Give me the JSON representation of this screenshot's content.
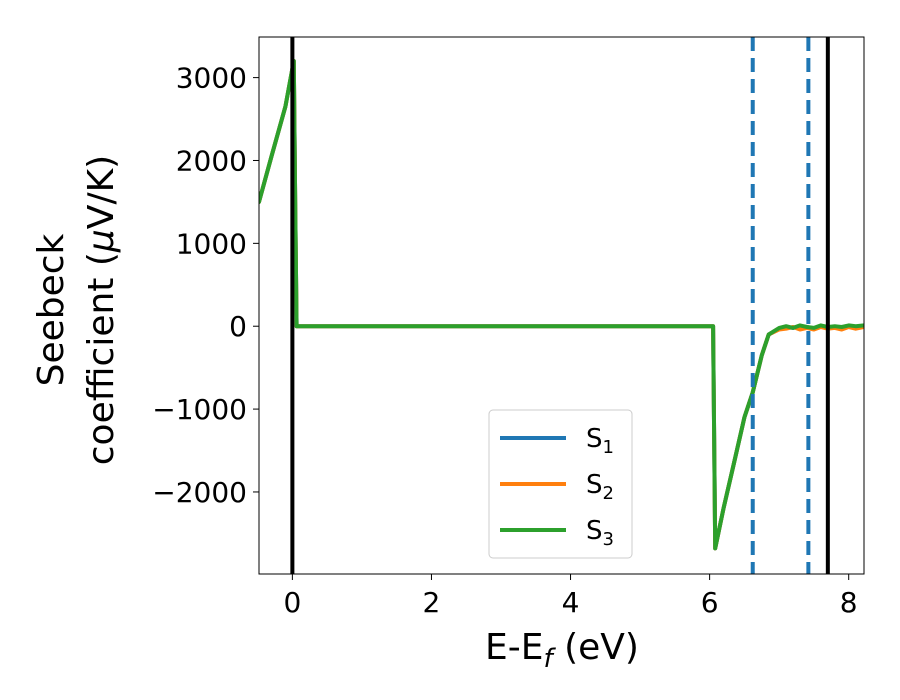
{
  "chart_data": {
    "type": "line",
    "xlabel_main": "E-E",
    "xlabel_sub": "f",
    "xlabel_unit": " (eV)",
    "ylabel_line1": "Seebeck",
    "ylabel_line2": "coefficient  (",
    "ylabel_mu": "μ",
    "ylabel_line2_end": "V/K)",
    "xlim": [
      -0.48,
      8.22
    ],
    "ylim": [
      -2990,
      3490
    ],
    "x_ticks": [
      0,
      2,
      4,
      6,
      8
    ],
    "x_tick_labels": [
      "0",
      "2",
      "4",
      "6",
      "8"
    ],
    "y_ticks": [
      -2000,
      -1000,
      0,
      1000,
      2000,
      3000
    ],
    "y_tick_labels": [
      "−2000",
      "−1000",
      "0",
      "1000",
      "2000",
      "3000"
    ],
    "vlines_solid": [
      0.0,
      7.7
    ],
    "vlines_dashed": [
      6.62,
      7.42
    ],
    "legend_position": "lower-center",
    "series": [
      {
        "name": "S",
        "name_sub": "1",
        "color": "#1f77b4",
        "x": [
          -0.48,
          -0.3,
          -0.1,
          0.02,
          0.04,
          0.06,
          1.0,
          2.0,
          3.0,
          4.0,
          5.0,
          6.0,
          6.05,
          6.08,
          6.2,
          6.35,
          6.5,
          6.62,
          6.75,
          6.85,
          7.0,
          7.1,
          7.2,
          7.3,
          7.4,
          7.5,
          7.6,
          7.7,
          7.8,
          7.9,
          8.0,
          8.1,
          8.22
        ],
        "y": [
          1500,
          2050,
          2650,
          3200,
          1500,
          0,
          0,
          0,
          0,
          0,
          0,
          0,
          0,
          -2680,
          -2200,
          -1650,
          -1100,
          -800,
          -350,
          -100,
          -30,
          -10,
          -20,
          0,
          -10,
          -30,
          0,
          -20,
          -10,
          -20,
          0,
          -10,
          0
        ]
      },
      {
        "name": "S",
        "name_sub": "2",
        "color": "#ff7f0e",
        "x": [
          -0.48,
          -0.3,
          -0.1,
          0.02,
          0.04,
          0.06,
          1.0,
          2.0,
          3.0,
          4.0,
          5.0,
          6.0,
          6.05,
          6.08,
          6.2,
          6.35,
          6.5,
          6.62,
          6.75,
          6.85,
          7.0,
          7.1,
          7.2,
          7.3,
          7.4,
          7.5,
          7.6,
          7.7,
          7.8,
          7.9,
          8.0,
          8.1,
          8.22
        ],
        "y": [
          1500,
          2050,
          2650,
          3200,
          1500,
          0,
          0,
          0,
          0,
          0,
          0,
          0,
          0,
          -2680,
          -2200,
          -1650,
          -1100,
          -800,
          -350,
          -100,
          -40,
          -30,
          -10,
          -40,
          -20,
          -40,
          -10,
          -30,
          -20,
          -40,
          -10,
          -30,
          -10
        ]
      },
      {
        "name": "S",
        "name_sub": "3",
        "color": "#2ca02c",
        "x": [
          -0.48,
          -0.3,
          -0.1,
          0.02,
          0.04,
          0.06,
          1.0,
          2.0,
          3.0,
          4.0,
          5.0,
          6.0,
          6.05,
          6.08,
          6.2,
          6.35,
          6.5,
          6.62,
          6.75,
          6.85,
          7.0,
          7.1,
          7.2,
          7.3,
          7.4,
          7.5,
          7.6,
          7.7,
          7.8,
          7.9,
          8.0,
          8.1,
          8.22
        ],
        "y": [
          1500,
          2050,
          2650,
          3200,
          1500,
          0,
          0,
          0,
          0,
          0,
          0,
          0,
          0,
          -2680,
          -2200,
          -1650,
          -1100,
          -800,
          -350,
          -100,
          -20,
          0,
          -20,
          10,
          -10,
          -20,
          10,
          -10,
          0,
          -10,
          10,
          0,
          10
        ]
      }
    ]
  },
  "colors": {
    "vline_solid": "#000000",
    "vline_dashed": "#1f77b4"
  }
}
